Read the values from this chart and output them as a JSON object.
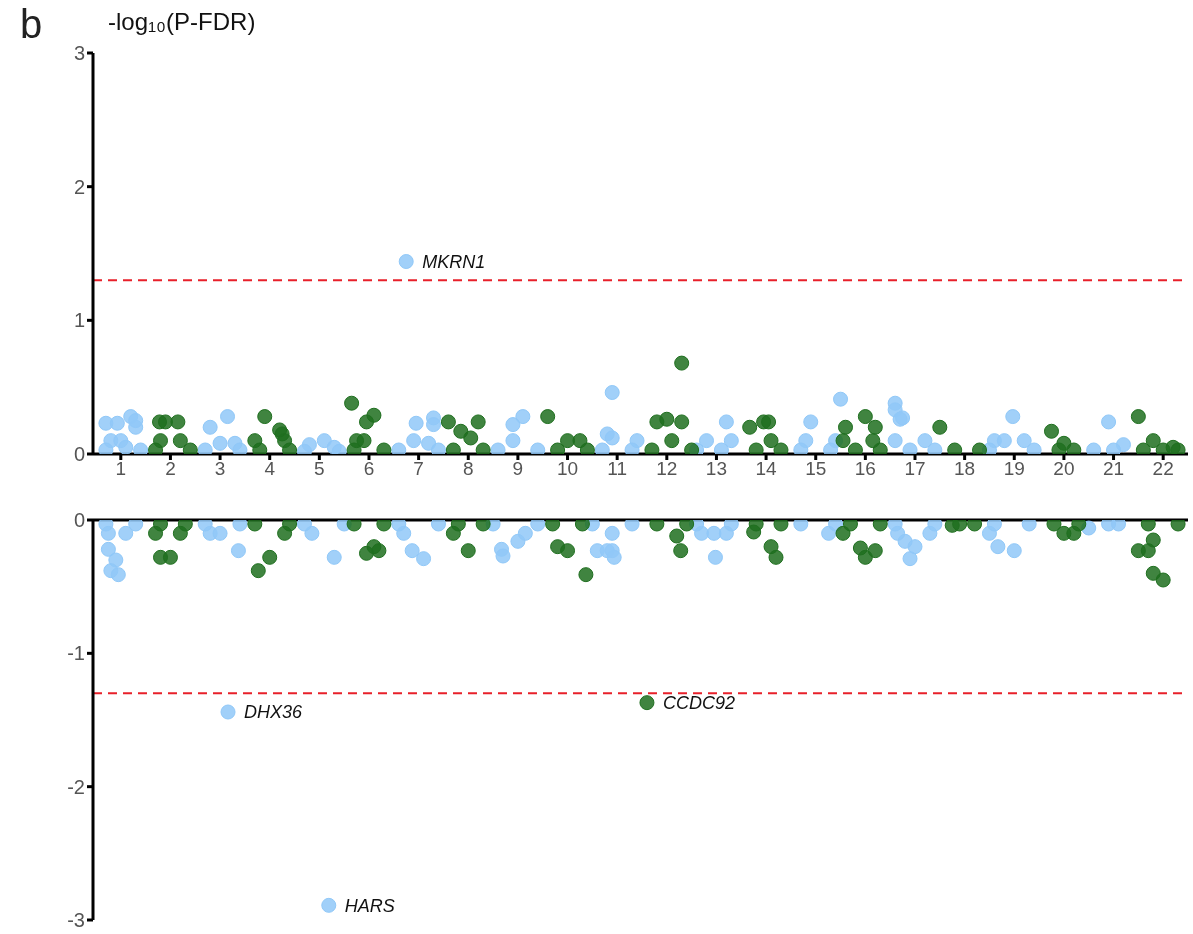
{
  "chart_data": [
    {
      "type": "scatter",
      "title": "b",
      "ylabel": "-log₁₀(P-FDR)",
      "marker": "circle",
      "xlim": [
        0.44,
        22.5
      ],
      "xticks": [
        1,
        2,
        3,
        4,
        5,
        6,
        7,
        8,
        9,
        10,
        11,
        12,
        13,
        14,
        15,
        16,
        17,
        18,
        19,
        20,
        21,
        22
      ],
      "ylim": [
        0,
        3
      ],
      "yticks": [
        0,
        1,
        2,
        3
      ],
      "series": [
        {
          "color": "#90c8f8",
          "x": [
            0.7,
            0.93,
            1.2,
            1.3,
            1.3,
            0.8,
            1.0,
            1.1,
            0.7,
            1.4,
            2.8,
            3.15,
            3.0,
            3.3,
            3.4,
            2.7,
            4.8,
            5.1,
            5.3,
            4.7,
            5.4,
            6.75,
            6.95,
            7.3,
            7.3,
            6.9,
            7.2,
            6.6,
            7.4,
            8.9,
            9.1,
            8.9,
            8.6,
            9.4,
            10.9,
            10.8,
            10.9,
            11.4,
            10.7,
            11.3,
            13.2,
            12.8,
            13.3,
            12.6,
            13.1,
            14.9,
            15.5,
            14.8,
            15.4,
            14.7,
            15.3,
            16.6,
            16.6,
            16.7,
            16.75,
            16.6,
            17.2,
            16.9,
            17.4,
            18.97,
            18.6,
            18.8,
            19.2,
            18.5,
            19.4,
            20.9,
            21.2,
            20.6,
            21.0
          ],
          "values": [
            0.23,
            0.23,
            0.28,
            0.2,
            0.25,
            0.1,
            0.1,
            0.05,
            0.03,
            0.03,
            0.2,
            0.28,
            0.08,
            0.08,
            0.03,
            0.03,
            0.07,
            0.1,
            0.05,
            0.02,
            0.02,
            1.44,
            0.23,
            0.27,
            0.22,
            0.1,
            0.08,
            0.03,
            0.03,
            0.22,
            0.28,
            0.1,
            0.03,
            0.03,
            0.46,
            0.15,
            0.12,
            0.1,
            0.03,
            0.03,
            0.24,
            0.1,
            0.1,
            0.03,
            0.03,
            0.24,
            0.41,
            0.1,
            0.1,
            0.03,
            0.03,
            0.38,
            0.33,
            0.26,
            0.27,
            0.1,
            0.1,
            0.03,
            0.03,
            0.28,
            0.1,
            0.1,
            0.1,
            0.03,
            0.03,
            0.24,
            0.07,
            0.03,
            0.03
          ]
        },
        {
          "color": "#1f6f1f",
          "x": [
            1.78,
            1.9,
            2.15,
            1.8,
            2.2,
            1.7,
            2.4,
            3.9,
            4.2,
            4.25,
            4.3,
            3.7,
            3.8,
            4.4,
            5.65,
            6.1,
            5.95,
            5.75,
            5.9,
            5.7,
            6.3,
            7.6,
            8.2,
            7.85,
            8.05,
            7.7,
            8.3,
            9.6,
            10.0,
            10.25,
            9.8,
            10.4,
            12.3,
            11.8,
            12.0,
            12.3,
            12.1,
            11.7,
            12.5,
            13.67,
            13.95,
            14.05,
            14.1,
            13.8,
            14.3,
            15.6,
            16.0,
            16.2,
            15.55,
            16.15,
            15.8,
            16.3,
            17.5,
            17.8,
            18.3,
            19.75,
            20.0,
            19.9,
            20.2,
            21.5,
            21.8,
            22.2,
            22.3,
            21.6,
            22.0
          ],
          "values": [
            0.24,
            0.24,
            0.24,
            0.1,
            0.1,
            0.03,
            0.03,
            0.28,
            0.18,
            0.15,
            0.1,
            0.1,
            0.03,
            0.03,
            0.38,
            0.29,
            0.24,
            0.1,
            0.1,
            0.03,
            0.03,
            0.24,
            0.24,
            0.17,
            0.12,
            0.03,
            0.03,
            0.28,
            0.1,
            0.1,
            0.03,
            0.03,
            0.68,
            0.24,
            0.26,
            0.24,
            0.1,
            0.03,
            0.03,
            0.2,
            0.24,
            0.24,
            0.1,
            0.03,
            0.03,
            0.2,
            0.28,
            0.2,
            0.1,
            0.1,
            0.03,
            0.03,
            0.2,
            0.03,
            0.03,
            0.17,
            0.08,
            0.03,
            0.03,
            0.28,
            0.1,
            0.05,
            0.03,
            0.03,
            0.03
          ]
        }
      ],
      "ref_lines": [
        {
          "axis": "y",
          "value": 1.3,
          "color": "#e8202a",
          "line_style": "dashed"
        }
      ],
      "annotations": [
        {
          "text": "MKRN1",
          "x": 6.75,
          "y": 1.44
        }
      ]
    },
    {
      "type": "scatter",
      "marker": "circle",
      "tick_labels": "y",
      "xlim": [
        0.44,
        22.5
      ],
      "xticks": [
        1,
        2,
        3,
        4,
        5,
        6,
        7,
        8,
        9,
        10,
        11,
        12,
        13,
        14,
        15,
        16,
        17,
        18,
        19,
        20,
        21,
        22
      ],
      "ylim": [
        -3,
        0
      ],
      "yticks": [
        -3,
        -2,
        -1,
        0
      ],
      "series": [
        {
          "color": "#90c8f8",
          "x": [
            0.75,
            0.9,
            0.8,
            0.95,
            0.75,
            1.1,
            0.7,
            1.3,
            2.8,
            3.0,
            3.37,
            3.16,
            2.7,
            3.4,
            5.3,
            4.85,
            5.19,
            4.7,
            5.5,
            6.87,
            7.1,
            6.7,
            6.6,
            7.4,
            8.67,
            8.7,
            9.0,
            9.15,
            8.5,
            9.4,
            10.6,
            10.8,
            10.9,
            10.94,
            10.9,
            10.5,
            11.3,
            12.98,
            12.7,
            12.95,
            13.2,
            12.6,
            13.3,
            15.26,
            14.7,
            15.4,
            16.9,
            17.0,
            16.8,
            16.65,
            17.3,
            16.6,
            17.4,
            18.67,
            19.0,
            18.5,
            18.6,
            19.3,
            20.5,
            20.9,
            21.1
          ],
          "values": [
            -0.22,
            -0.3,
            -0.38,
            -0.41,
            -0.1,
            -0.1,
            -0.03,
            -0.03,
            -0.1,
            -0.1,
            -0.23,
            -1.44,
            -0.03,
            -0.03,
            -0.28,
            -0.1,
            -2.89,
            -0.03,
            -0.03,
            -0.23,
            -0.29,
            -0.1,
            -0.03,
            -0.03,
            -0.22,
            -0.27,
            -0.16,
            -0.1,
            -0.03,
            -0.03,
            -0.23,
            -0.23,
            -0.23,
            -0.28,
            -0.1,
            -0.03,
            -0.03,
            -0.28,
            -0.1,
            -0.1,
            -0.1,
            -0.03,
            -0.03,
            -0.1,
            -0.03,
            -0.03,
            -0.29,
            -0.2,
            -0.16,
            -0.1,
            -0.1,
            -0.03,
            -0.03,
            -0.2,
            -0.23,
            -0.1,
            -0.03,
            -0.03,
            -0.06,
            -0.03,
            -0.03
          ]
        },
        {
          "color": "#1f6f1f",
          "x": [
            1.8,
            2.0,
            1.7,
            2.2,
            1.8,
            2.3,
            3.77,
            4.0,
            4.3,
            3.7,
            4.4,
            6.1,
            5.95,
            6.2,
            5.7,
            6.3,
            8.0,
            7.7,
            7.8,
            8.3,
            9.8,
            10.0,
            10.37,
            9.7,
            10.3,
            12.28,
            12.2,
            11.6,
            11.8,
            12.4,
            14.1,
            14.2,
            13.75,
            13.8,
            14.3,
            15.9,
            16.0,
            16.2,
            15.55,
            15.7,
            16.3,
            17.75,
            17.9,
            18.2,
            20.0,
            20.2,
            19.8,
            20.3,
            21.5,
            21.7,
            21.8,
            22.0,
            21.8,
            21.7,
            22.3
          ],
          "values": [
            -0.28,
            -0.28,
            -0.1,
            -0.1,
            -0.03,
            -0.03,
            -0.38,
            -0.28,
            -0.1,
            -0.03,
            -0.03,
            -0.2,
            -0.25,
            -0.23,
            -0.03,
            -0.03,
            -0.23,
            -0.1,
            -0.03,
            -0.03,
            -0.2,
            -0.23,
            -0.41,
            -0.03,
            -0.03,
            -0.23,
            -0.12,
            -1.37,
            -0.03,
            -0.03,
            -0.2,
            -0.28,
            -0.09,
            -0.03,
            -0.03,
            -0.21,
            -0.28,
            -0.23,
            -0.1,
            -0.03,
            -0.03,
            -0.04,
            -0.03,
            -0.03,
            -0.1,
            -0.1,
            -0.03,
            -0.03,
            -0.23,
            -0.23,
            -0.4,
            -0.45,
            -0.15,
            -0.03,
            -0.03
          ]
        }
      ],
      "ref_lines": [
        {
          "axis": "y",
          "value": -1.3,
          "color": "#e8202a",
          "line_style": "dashed"
        }
      ],
      "annotations": [
        {
          "text": "DHX36",
          "x": 3.16,
          "y": -1.44
        },
        {
          "text": "CCDC92",
          "x": 11.6,
          "y": -1.37
        },
        {
          "text": "HARS",
          "x": 5.19,
          "y": -2.89
        }
      ]
    }
  ]
}
